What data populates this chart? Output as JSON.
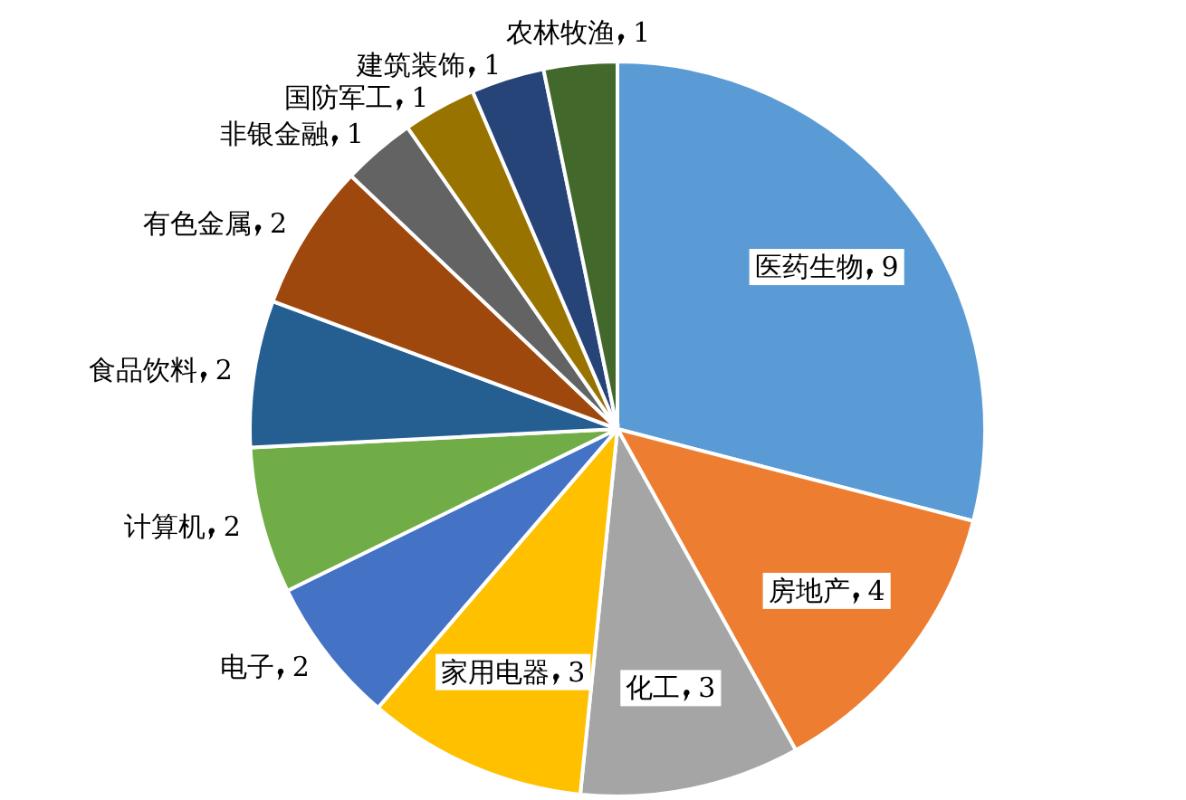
{
  "chart_data": {
    "type": "pie",
    "data_labels": true,
    "categories": [
      "医药生物",
      "房地产",
      "化工",
      "家用电器",
      "电子",
      "计算机",
      "食品饮料",
      "有色金属",
      "非银金融",
      "国防军工",
      "建筑装饰",
      "农林牧渔"
    ],
    "values": [
      9,
      4,
      3,
      3,
      2,
      2,
      2,
      2,
      1,
      1,
      1,
      1
    ],
    "colors": [
      "#5b9bd5",
      "#ed7d31",
      "#a5a5a5",
      "#ffc000",
      "#4472c4",
      "#70ad47",
      "#255e91",
      "#9e480e",
      "#636363",
      "#997300",
      "#264478",
      "#43682b"
    ]
  }
}
